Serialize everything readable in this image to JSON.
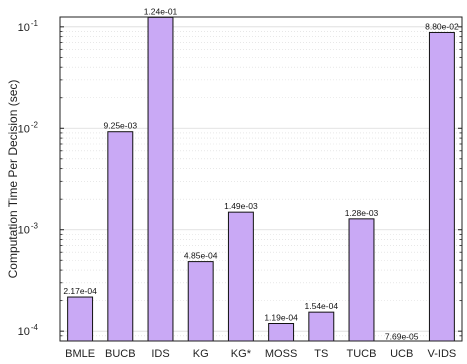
{
  "chart_data": {
    "type": "bar",
    "title": "",
    "xlabel": "",
    "ylabel": "Computation Time Per Decision (sec)",
    "yscale": "log",
    "ylim": [
      8e-05,
      0.125
    ],
    "grid": true,
    "categories": [
      "BMLE",
      "BUCB",
      "IDS",
      "KG",
      "KG*",
      "MOSS",
      "TS",
      "TUCB",
      "UCB",
      "V-IDS"
    ],
    "values": [
      0.000217,
      0.00925,
      0.124,
      0.000485,
      0.00149,
      0.000119,
      0.000154,
      0.00128,
      7.69e-05,
      0.088
    ],
    "data_labels": [
      "2.17e-04",
      "9.25e-03",
      "1.24e-01",
      "4.85e-04",
      "1.49e-03",
      "1.19e-04",
      "1.54e-04",
      "1.28e-03",
      "7.69e-05",
      "8.80e-02"
    ],
    "y_ticks": [
      {
        "value": 0.0001,
        "base": "10",
        "exp": "-4"
      },
      {
        "value": 0.001,
        "base": "10",
        "exp": "-3"
      },
      {
        "value": 0.01,
        "base": "10",
        "exp": "-2"
      },
      {
        "value": 0.1,
        "base": "10",
        "exp": "-1"
      }
    ],
    "colors": {
      "bar_fill": "#c9a9f5",
      "bar_stroke": "#111111",
      "grid": "#d9d9d9",
      "axis": "#222222"
    }
  }
}
